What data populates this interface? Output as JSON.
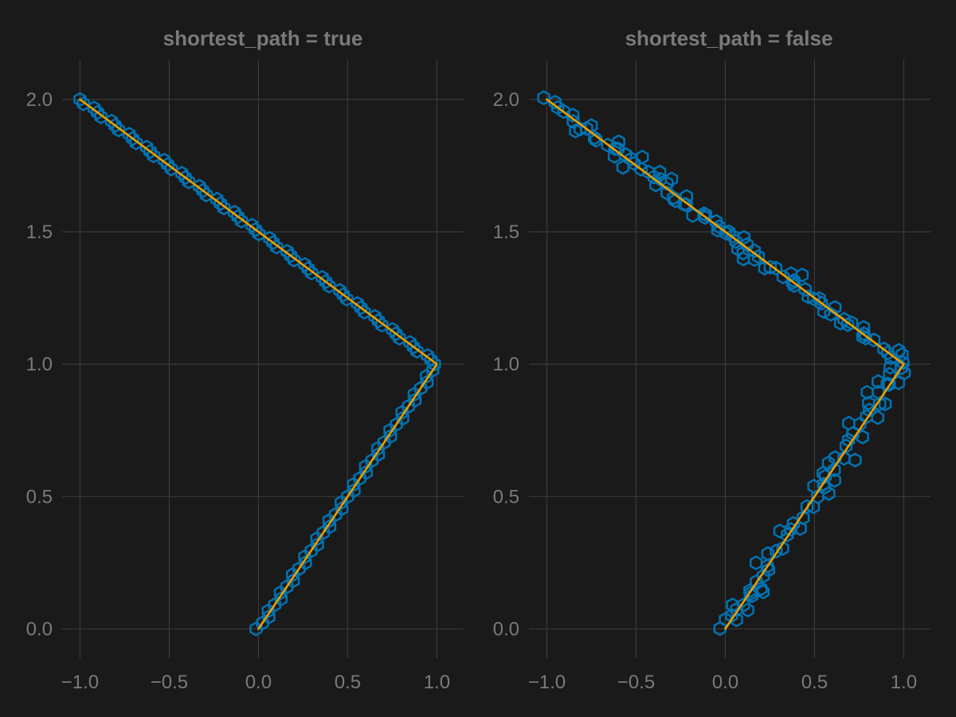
{
  "colors": {
    "background": "#1a1a1a",
    "text": "#7a7a7a",
    "grid": "#3a3a3a",
    "hexagon": "#0072b2",
    "line": "#e69f00"
  },
  "chart_data": [
    {
      "type": "line",
      "title": "shortest_path = true",
      "xlim": [
        -1.1,
        1.15
      ],
      "ylim": [
        -0.11,
        2.15
      ],
      "x_ticks": [
        -1.0,
        -0.5,
        0.0,
        0.5,
        1.0
      ],
      "x_tick_labels": [
        "−1.0",
        "−0.5",
        "0.0",
        "0.5",
        "1.0"
      ],
      "y_ticks": [
        0.0,
        0.5,
        1.0,
        1.5,
        2.0
      ],
      "y_tick_labels": [
        "0.0",
        "0.5",
        "1.0",
        "1.5",
        "2.0"
      ],
      "grid": true,
      "line": {
        "x": [
          0,
          1,
          -1
        ],
        "y": [
          0,
          1,
          2
        ]
      },
      "hexagon_cells": {
        "shortest_path": true,
        "hex_diameter": 0.05
      }
    },
    {
      "type": "line",
      "title": "shortest_path = false",
      "xlim": [
        -1.1,
        1.15
      ],
      "ylim": [
        -0.11,
        2.15
      ],
      "x_ticks": [
        -1.0,
        -0.5,
        0.0,
        0.5,
        1.0
      ],
      "x_tick_labels": [
        "−1.0",
        "−0.5",
        "0.0",
        "0.5",
        "1.0"
      ],
      "y_ticks": [
        0.0,
        0.5,
        1.0,
        1.5,
        2.0
      ],
      "y_tick_labels": [
        "0.0",
        "0.5",
        "1.0",
        "1.5",
        "2.0"
      ],
      "grid": true,
      "line": {
        "x": [
          0,
          1,
          -1
        ],
        "y": [
          0,
          1,
          2
        ]
      },
      "hexagon_cells": {
        "shortest_path": false,
        "hex_diameter": 0.05
      }
    }
  ]
}
